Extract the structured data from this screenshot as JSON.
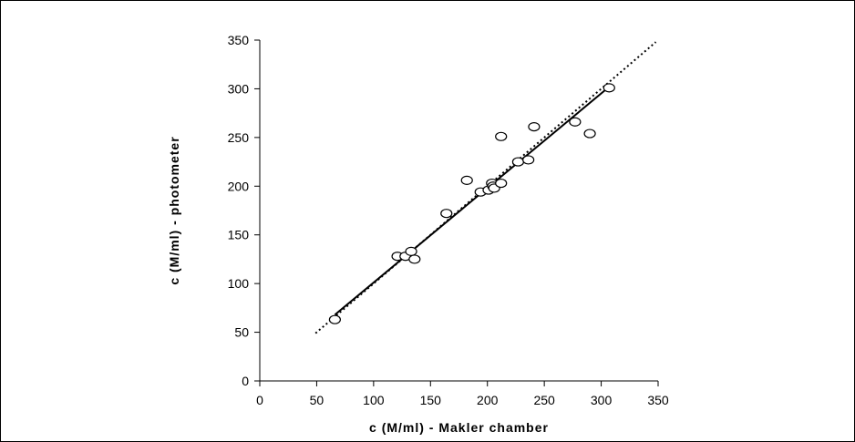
{
  "chart_data": {
    "type": "scatter",
    "xlabel": "c (M/ml) - Makler chamber",
    "ylabel": "c (M/ml) - photometer",
    "xlim": [
      0,
      350
    ],
    "ylim": [
      0,
      350
    ],
    "x_ticks": [
      0,
      50,
      100,
      150,
      200,
      250,
      300,
      350
    ],
    "y_ticks": [
      0,
      50,
      100,
      150,
      200,
      250,
      300,
      350
    ],
    "grid": false,
    "legend": "none",
    "points": [
      {
        "x": 66,
        "y": 63
      },
      {
        "x": 121,
        "y": 128
      },
      {
        "x": 128,
        "y": 128
      },
      {
        "x": 133,
        "y": 133
      },
      {
        "x": 136,
        "y": 125
      },
      {
        "x": 164,
        "y": 172
      },
      {
        "x": 182,
        "y": 206
      },
      {
        "x": 194,
        "y": 194
      },
      {
        "x": 201,
        "y": 196
      },
      {
        "x": 204,
        "y": 203
      },
      {
        "x": 205,
        "y": 200
      },
      {
        "x": 206,
        "y": 198
      },
      {
        "x": 212,
        "y": 203
      },
      {
        "x": 212,
        "y": 251
      },
      {
        "x": 227,
        "y": 225
      },
      {
        "x": 236,
        "y": 227
      },
      {
        "x": 241,
        "y": 261
      },
      {
        "x": 277,
        "y": 266
      },
      {
        "x": 290,
        "y": 254
      },
      {
        "x": 307,
        "y": 301
      }
    ],
    "lines": [
      {
        "style": "solid",
        "x": [
          66,
          307
        ],
        "y": [
          68,
          302
        ]
      },
      {
        "style": "dotted",
        "x": [
          49,
          348
        ],
        "y": [
          49,
          348
        ]
      }
    ]
  }
}
